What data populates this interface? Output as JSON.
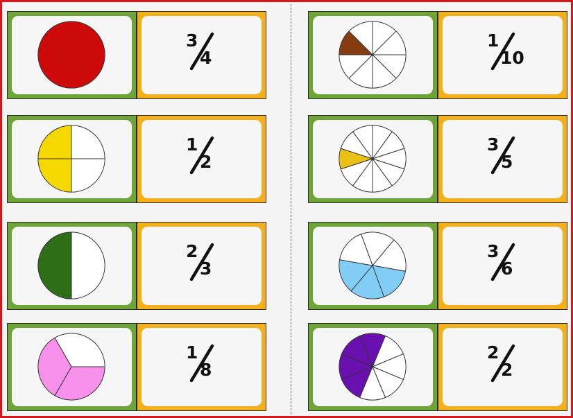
{
  "dominoes": [
    {
      "pie": {
        "slices": 1,
        "filled": [
          0
        ],
        "color": "#cc0a0a",
        "style": "solid"
      },
      "fraction": {
        "numerator": "3",
        "denominator": "4"
      }
    },
    {
      "pie": {
        "slices": 4,
        "filled": [
          2,
          3
        ],
        "color": "#f5d800",
        "style": "angular"
      },
      "fraction": {
        "numerator": "1",
        "denominator": "2"
      }
    },
    {
      "pie": {
        "slices": 2,
        "filled": [
          1
        ],
        "color": "#2e6e16",
        "style": "angular"
      },
      "fraction": {
        "numerator": "2",
        "denominator": "3"
      }
    },
    {
      "pie": {
        "slices": 3,
        "filled": [
          1,
          2
        ],
        "color": "#f690ea",
        "style": "angular",
        "start": -30
      },
      "fraction": {
        "numerator": "1",
        "denominator": "8"
      }
    },
    {
      "pie": {
        "slices": 8,
        "filled": [
          6
        ],
        "color": "#843c10",
        "style": "angular"
      },
      "fraction": {
        "numerator": "1",
        "denominator": "10"
      }
    },
    {
      "pie": {
        "slices": 10,
        "filled": [
          7
        ],
        "color": "#e9c016",
        "style": "angular"
      },
      "fraction": {
        "numerator": "3",
        "denominator": "5"
      }
    },
    {
      "pie": {
        "slices": 6,
        "filled": [
          2,
          3,
          4
        ],
        "color": "#82cdf5",
        "style": "angular",
        "start": -20
      },
      "fraction": {
        "numerator": "3",
        "denominator": "6"
      }
    },
    {
      "pie": {
        "slices": 8,
        "filled": [
          4,
          5,
          6,
          7
        ],
        "color": "#6a0fb0",
        "style": "angular",
        "start": 22.5
      },
      "fraction": {
        "numerator": "2",
        "denominator": "2"
      }
    }
  ],
  "colors": {
    "border": "#d6161b",
    "picture_card": "#6fa538",
    "fraction_card": "#f4b01a"
  }
}
